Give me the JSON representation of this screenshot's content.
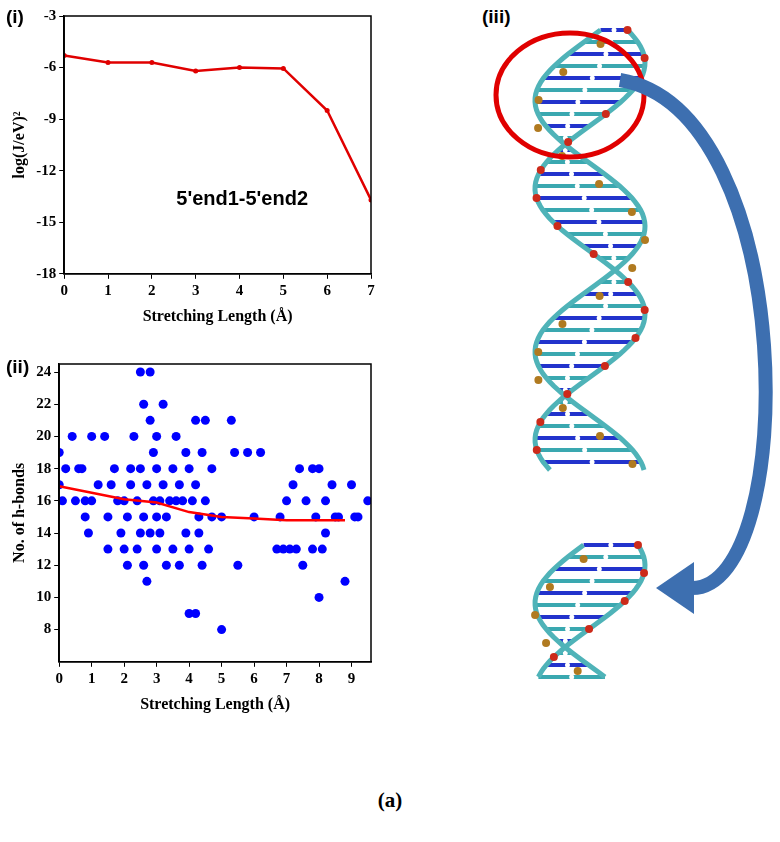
{
  "figure_label": "(a)",
  "chart_data": [
    {
      "panel": "(i)",
      "type": "line",
      "x": [
        0,
        1,
        2,
        3,
        4,
        5,
        6,
        7
      ],
      "values": [
        -5.3,
        -5.7,
        -5.7,
        -6.2,
        -6.0,
        -6.05,
        -8.5,
        -13.7
      ],
      "color": "#e00000",
      "marker": "circle",
      "xlim": [
        0,
        7
      ],
      "xticks": [
        0,
        1,
        2,
        3,
        4,
        5,
        6,
        7
      ],
      "ylim": [
        -18,
        -3
      ],
      "yticks": [
        -18,
        -15,
        -12,
        -9,
        -6,
        -3
      ],
      "x_label": "Stretching Length (Å)",
      "y_label": "log(J/eV)²",
      "annotation": "5'end1-5'end2",
      "grid": false
    },
    {
      "panel": "(ii)",
      "type": "scatter",
      "series": [
        {
          "type": "scatter",
          "color": "#0000ff",
          "marker": "circle",
          "x": [
            0,
            0,
            0.1,
            0.2,
            0.4,
            0.5,
            0.6,
            0.7,
            0.8,
            0.8,
            0.9,
            1.0,
            1.0,
            1.2,
            1.4,
            1.5,
            1.5,
            1.6,
            1.7,
            1.8,
            1.9,
            2.0,
            2.0,
            2.1,
            2.1,
            2.2,
            2.2,
            2.3,
            2.4,
            2.4,
            2.5,
            2.5,
            2.5,
            2.6,
            2.6,
            2.6,
            2.7,
            2.7,
            2.8,
            2.8,
            2.8,
            2.9,
            2.9,
            3.0,
            3.0,
            3.0,
            3.0,
            3.1,
            3.1,
            3.2,
            3.2,
            3.3,
            3.3,
            3.4,
            3.5,
            3.5,
            3.6,
            3.6,
            3.7,
            3.7,
            3.8,
            3.9,
            3.9,
            4.0,
            4.0,
            4.0,
            4.1,
            4.2,
            4.2,
            4.2,
            4.3,
            4.3,
            4.4,
            4.4,
            4.5,
            4.5,
            4.6,
            4.7,
            4.7,
            5.0,
            5.0,
            5.3,
            5.4,
            5.5,
            5.8,
            6.0,
            6.2,
            6.7,
            6.8,
            6.9,
            7.0,
            7.1,
            7.2,
            7.3,
            7.4,
            7.5,
            7.6,
            7.8,
            7.8,
            7.9,
            8.0,
            8.0,
            8.1,
            8.2,
            8.2,
            8.4,
            8.5,
            8.6,
            8.8,
            9.0,
            9.1,
            9.2,
            9.5
          ],
          "values": [
            19,
            17,
            16,
            18,
            20,
            16,
            18,
            18,
            15,
            16,
            14,
            20,
            16,
            17,
            20,
            13,
            15,
            17,
            18,
            16,
            14,
            16,
            13,
            12,
            15,
            17,
            18,
            20,
            13,
            16,
            14,
            18,
            24,
            22,
            15,
            12,
            11,
            17,
            24,
            21,
            14,
            19,
            16,
            18,
            20,
            13,
            15,
            16,
            14,
            22,
            17,
            15,
            12,
            16,
            18,
            13,
            20,
            16,
            12,
            17,
            16,
            14,
            19,
            18,
            9,
            13,
            16,
            17,
            9,
            21,
            15,
            14,
            19,
            12,
            21,
            16,
            13,
            15,
            18,
            15,
            8,
            21,
            19,
            12,
            19,
            15,
            19,
            13,
            15,
            13,
            16,
            13,
            17,
            13,
            18,
            12,
            16,
            18,
            13,
            15,
            10,
            18,
            13,
            14,
            16,
            17,
            15,
            15,
            11,
            17,
            15,
            15,
            16
          ]
        },
        {
          "type": "line",
          "color": "#ff0000",
          "x": [
            0,
            1,
            2,
            3,
            4,
            5,
            6,
            7,
            8,
            8.8
          ],
          "values": [
            16.9,
            16.5,
            16.1,
            15.9,
            15.3,
            15.0,
            14.9,
            14.8,
            14.8,
            14.8
          ]
        }
      ],
      "xlim": [
        0,
        9.6
      ],
      "xticks": [
        0,
        1,
        2,
        3,
        4,
        5,
        6,
        7,
        8,
        9
      ],
      "ylim": [
        6,
        24.5
      ],
      "yticks": [
        8,
        10,
        12,
        14,
        16,
        18,
        20,
        22,
        24
      ],
      "x_label": "Stretching Length (Å)",
      "y_label": "No. of h-bonds",
      "grid": false
    }
  ],
  "diagram": {
    "panel": "(iii)"
  }
}
